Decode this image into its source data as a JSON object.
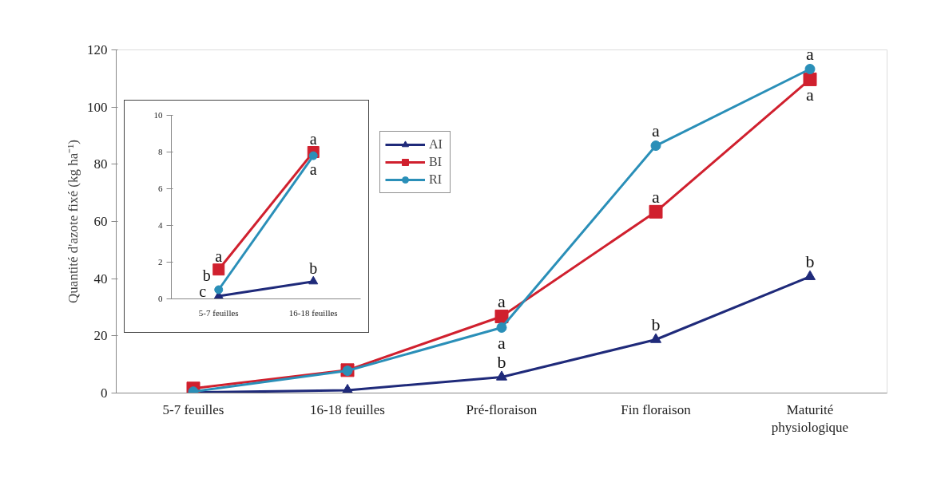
{
  "chart_data": [
    {
      "type": "line",
      "ylabel": "Quantité d'azote fixé (kg ha⁻¹)",
      "categories": [
        "5-7 feuilles",
        "16-18 feuilles",
        "Pré-floraison",
        "Fin floraison",
        "Maturité physiologique"
      ],
      "series": [
        {
          "name": "AI",
          "color": "#1f2a7a",
          "marker": "triangle",
          "values": [
            0.2,
            1.0,
            5.6,
            18.7,
            40.7
          ]
        },
        {
          "name": "BI",
          "color": "#d0202e",
          "marker": "square",
          "values": [
            1.6,
            8.0,
            26.8,
            63.4,
            109.7
          ]
        },
        {
          "name": "RI",
          "color": "#2a8fb8",
          "marker": "circle",
          "values": [
            0.5,
            7.8,
            22.9,
            86.5,
            113.3
          ]
        }
      ],
      "ylim": [
        0,
        120
      ],
      "yticks": [
        0,
        20,
        40,
        60,
        80,
        100,
        120
      ],
      "grid": false,
      "legend": "top left",
      "annotations": [
        {
          "text": "a",
          "x": "Pré-floraison",
          "y": 26.8
        },
        {
          "text": "a",
          "x": "Pré-floraison",
          "y": 22.9
        },
        {
          "text": "b",
          "x": "Pré-floraison",
          "y": 5.6
        },
        {
          "text": "a",
          "x": "Fin floraison",
          "y": 86.5
        },
        {
          "text": "a",
          "x": "Fin floraison",
          "y": 63.4
        },
        {
          "text": "b",
          "x": "Fin floraison",
          "y": 18.7
        },
        {
          "text": "a",
          "x": "Maturité physiologique",
          "y": 113.3
        },
        {
          "text": "a",
          "x": "Maturité physiologique",
          "y": 109.7
        },
        {
          "text": "b",
          "x": "Maturité physiologique",
          "y": 40.7
        }
      ]
    },
    {
      "type": "line",
      "categories": [
        "5-7 feuilles",
        "16-18 feuilles"
      ],
      "series": [
        {
          "color": "#1f2a7a",
          "marker": "triangle",
          "values": [
            0.15,
            0.95
          ]
        },
        {
          "color": "#d0202e",
          "marker": "square",
          "values": [
            1.6,
            8.0
          ]
        },
        {
          "color": "#2a8fb8",
          "marker": "circle",
          "values": [
            0.5,
            7.8
          ]
        }
      ],
      "ylim": [
        0,
        10
      ],
      "yticks": [
        0,
        2,
        4,
        6,
        8,
        10
      ],
      "grid": false,
      "legend": false,
      "annotations": [
        {
          "text": "a",
          "x": "5-7 feuilles",
          "y": 1.6
        },
        {
          "text": "b",
          "x": "5-7 feuilles",
          "y": 0.5
        },
        {
          "text": "c",
          "x": "5-7 feuilles",
          "y": 0.15
        },
        {
          "text": "a",
          "x": "16-18 feuilles",
          "y": 8.0
        },
        {
          "text": "a",
          "x": "16-18 feuilles",
          "y": 7.8
        },
        {
          "text": "b",
          "x": "16-18 feuilles",
          "y": 0.95
        }
      ]
    }
  ]
}
